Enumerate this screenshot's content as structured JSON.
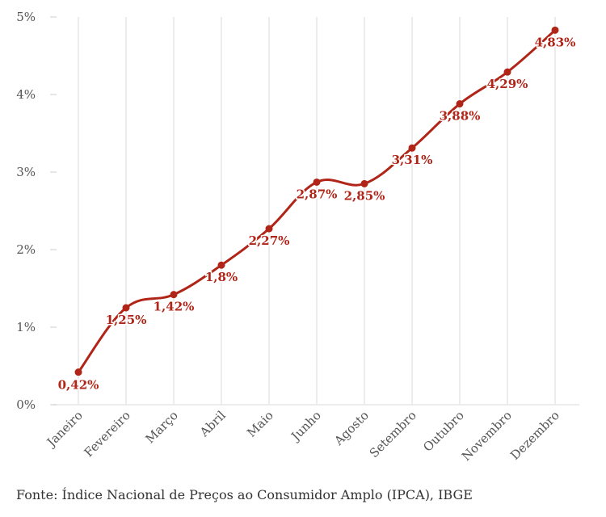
{
  "chart_data": {
    "type": "line",
    "categories": [
      "Janeiro",
      "Fevereiro",
      "Março",
      "Abril",
      "Maio",
      "Junho",
      "Agosto",
      "Setembro",
      "Outubro",
      "Novembro",
      "Dezembro"
    ],
    "values": [
      0.42,
      1.25,
      1.42,
      1.8,
      2.27,
      2.87,
      2.85,
      3.31,
      3.88,
      4.29,
      4.83
    ],
    "data_labels": [
      "0,42%",
      "1,25%",
      "1,42%",
      "1,8%",
      "2,27%",
      "2,87%",
      "2,85%",
      "3,31%",
      "3,88%",
      "4,29%",
      "4,83%"
    ],
    "y_ticks": [
      0,
      1,
      2,
      3,
      4,
      5
    ],
    "y_tick_labels": [
      "0%",
      "1%",
      "2%",
      "3%",
      "4%",
      "5%"
    ],
    "ylim": [
      0,
      5
    ],
    "grid": "vertical",
    "line_color": "#b02518",
    "grid_color": "#e6e6e6",
    "source": "Fonte: Índice Nacional de Preços ao Consumidor Amplo (IPCA), IBGE"
  }
}
